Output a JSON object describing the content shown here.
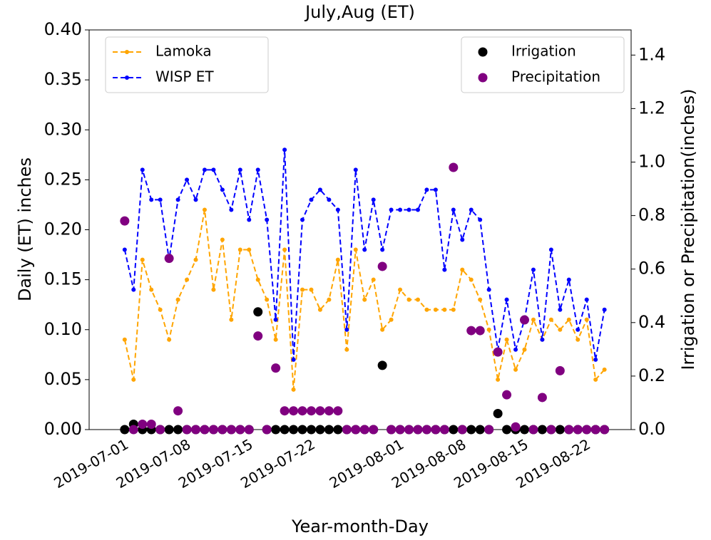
{
  "chart_data": {
    "type": "line",
    "title": "July,Aug (ET)",
    "xlabel": "Year-month-Day",
    "ylabel": "Daily (ET) inches",
    "y2label": "Irrigation or Precipitation(inches)",
    "x": [
      "2019-07-01",
      "2019-07-02",
      "2019-07-03",
      "2019-07-04",
      "2019-07-05",
      "2019-07-06",
      "2019-07-07",
      "2019-07-08",
      "2019-07-09",
      "2019-07-10",
      "2019-07-11",
      "2019-07-12",
      "2019-07-13",
      "2019-07-14",
      "2019-07-15",
      "2019-07-16",
      "2019-07-17",
      "2019-07-18",
      "2019-07-19",
      "2019-07-20",
      "2019-07-21",
      "2019-07-22",
      "2019-07-23",
      "2019-07-24",
      "2019-07-25",
      "2019-07-26",
      "2019-07-27",
      "2019-07-28",
      "2019-07-29",
      "2019-07-30",
      "2019-07-31",
      "2019-08-01",
      "2019-08-02",
      "2019-08-03",
      "2019-08-04",
      "2019-08-05",
      "2019-08-06",
      "2019-08-07",
      "2019-08-08",
      "2019-08-09",
      "2019-08-10",
      "2019-08-11",
      "2019-08-12",
      "2019-08-13",
      "2019-08-14",
      "2019-08-15",
      "2019-08-16",
      "2019-08-17",
      "2019-08-18",
      "2019-08-19",
      "2019-08-20",
      "2019-08-21",
      "2019-08-22",
      "2019-08-23",
      "2019-08-24"
    ],
    "xlim": [
      "2019-06-27",
      "2019-08-27"
    ],
    "xticks": [
      "2019-07-01",
      "2019-07-08",
      "2019-07-15",
      "2019-07-22",
      "2019-08-01",
      "2019-08-08",
      "2019-08-15",
      "2019-08-22"
    ],
    "ylim": [
      0,
      0.4
    ],
    "yticks": [
      {
        "value": 0,
        "label": "0.00"
      },
      {
        "value": 0.05,
        "label": "0.05"
      },
      {
        "value": 0.1,
        "label": "0.10"
      },
      {
        "value": 0.15,
        "label": "0.15"
      },
      {
        "value": 0.2,
        "label": "0.20"
      },
      {
        "value": 0.25,
        "label": "0.25"
      },
      {
        "value": 0.3,
        "label": "0.30"
      },
      {
        "value": 0.35,
        "label": "0.35"
      },
      {
        "value": 0.4,
        "label": "0.40"
      }
    ],
    "y2lim": [
      0,
      1.494
    ],
    "y2ticks": [
      {
        "value": 0,
        "label": "0.0"
      },
      {
        "value": 0.2,
        "label": "0.2"
      },
      {
        "value": 0.4,
        "label": "0.4"
      },
      {
        "value": 0.6,
        "label": "0.6"
      },
      {
        "value": 0.8,
        "label": "0.8"
      },
      {
        "value": 1,
        "label": "1.0"
      },
      {
        "value": 1.2,
        "label": "1.2"
      },
      {
        "value": 1.4,
        "label": "1.4"
      }
    ],
    "legend": "upper left",
    "legend2": "upper right",
    "series": [
      {
        "name": "Lamoka",
        "color": "orange",
        "type": "line",
        "axis": "y",
        "values": [
          0.09,
          0.05,
          0.17,
          0.14,
          0.12,
          0.09,
          0.13,
          0.15,
          0.17,
          0.22,
          0.14,
          0.19,
          0.11,
          0.18,
          0.18,
          0.15,
          0.13,
          0.09,
          0.18,
          0.04,
          0.14,
          0.14,
          0.12,
          0.13,
          0.17,
          0.08,
          0.18,
          0.13,
          0.15,
          0.1,
          0.11,
          0.14,
          0.13,
          0.13,
          0.12,
          0.12,
          0.12,
          0.12,
          0.16,
          0.15,
          0.13,
          0.1,
          0.05,
          0.09,
          0.06,
          0.08,
          0.11,
          0.09,
          0.11,
          0.1,
          0.11,
          0.09,
          0.11,
          0.05,
          0.06
        ]
      },
      {
        "name": "WISP ET",
        "color": "blue",
        "type": "line",
        "axis": "y",
        "values": [
          0.18,
          0.14,
          0.26,
          0.23,
          0.23,
          0.17,
          0.23,
          0.25,
          0.23,
          0.26,
          0.26,
          0.24,
          0.22,
          0.26,
          0.21,
          0.26,
          0.21,
          0.11,
          0.28,
          0.07,
          0.21,
          0.23,
          0.24,
          0.23,
          0.22,
          0.1,
          0.26,
          0.18,
          0.23,
          0.18,
          0.22,
          0.22,
          0.22,
          0.22,
          0.24,
          0.24,
          0.16,
          0.22,
          0.19,
          0.22,
          0.21,
          0.14,
          0.08,
          0.13,
          0.08,
          0.11,
          0.16,
          0.09,
          0.18,
          0.12,
          0.15,
          0.1,
          0.13,
          0.07,
          0.12
        ]
      },
      {
        "name": "Irrigation",
        "color": "black",
        "type": "scatter",
        "axis": "y2",
        "values": [
          0,
          0.02,
          0,
          0,
          0,
          0,
          0,
          0,
          0,
          0,
          0,
          0,
          0,
          0,
          0,
          0.44,
          0,
          0,
          0,
          0,
          0,
          0,
          0,
          0,
          0,
          0,
          0,
          0,
          0,
          0.24,
          0,
          0,
          0,
          0,
          0,
          0,
          0,
          0,
          0,
          0,
          0,
          0,
          0.06,
          0,
          0,
          0,
          0,
          0,
          0,
          0,
          0,
          0,
          0,
          0,
          0
        ]
      },
      {
        "name": "Precipitation",
        "color": "purple",
        "type": "scatter",
        "axis": "y2",
        "values": [
          0.78,
          0,
          0.02,
          0.02,
          0,
          0.64,
          0.07,
          0,
          0,
          0,
          0,
          0,
          0,
          0,
          0,
          0.35,
          0,
          0.23,
          0.07,
          0.07,
          0.07,
          0.07,
          0.07,
          0.07,
          0.07,
          0,
          0,
          0,
          0,
          0.61,
          0,
          0,
          0,
          0,
          0,
          0,
          0,
          0.98,
          0,
          0.37,
          0.37,
          0,
          0.29,
          0.13,
          0.01,
          0.41,
          0,
          0.12,
          0,
          0.22,
          0,
          0,
          0,
          0,
          0
        ]
      }
    ]
  }
}
